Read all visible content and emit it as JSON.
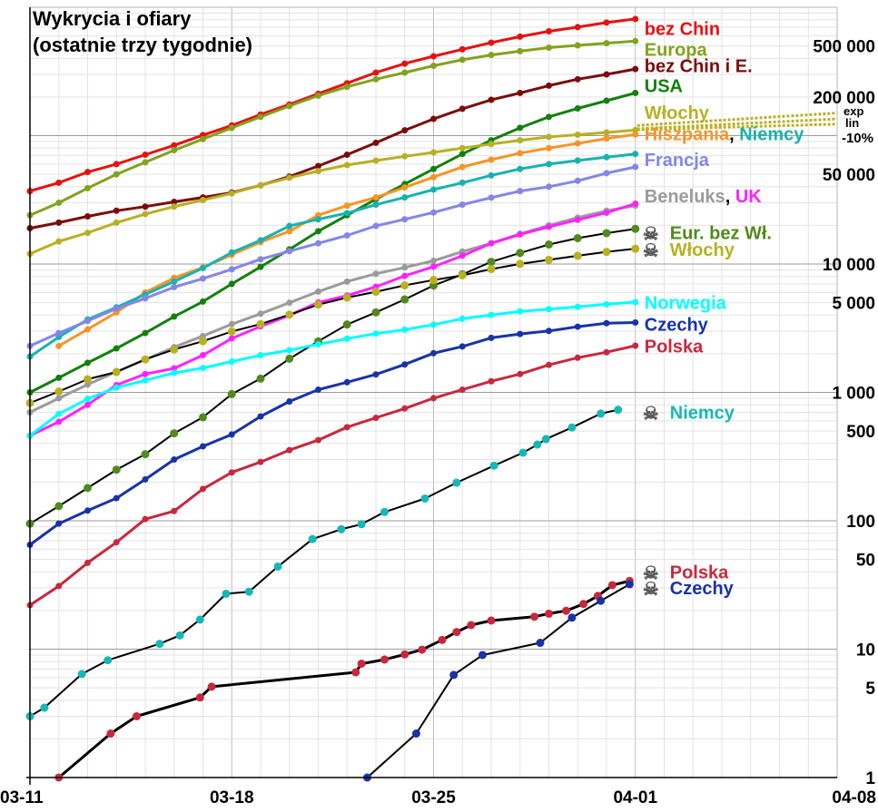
{
  "chart_data": {
    "type": "line",
    "title": "Wykrycia i ofiary",
    "subtitle": "(ostatnie trzy tygodnie)",
    "xlabel": "",
    "ylabel": "",
    "y_scale": "log",
    "ylim": [
      1,
      1000000
    ],
    "xlim": [
      0,
      28
    ],
    "x_ticks": [
      {
        "x": 0,
        "label": "03-11"
      },
      {
        "x": 7,
        "label": "03-18"
      },
      {
        "x": 14,
        "label": "03-25"
      },
      {
        "x": 21,
        "label": "04-01"
      },
      {
        "x": 28,
        "label": "04-08"
      }
    ],
    "y_ticks": [
      {
        "value": 1,
        "label": "1"
      },
      {
        "value": 5,
        "label": "5"
      },
      {
        "value": 10,
        "label": "10"
      },
      {
        "value": 50,
        "label": "50"
      },
      {
        "value": 100,
        "label": "100"
      },
      {
        "value": 500,
        "label": "500"
      },
      {
        "value": 1000,
        "label": "1 000"
      },
      {
        "value": 5000,
        "label": "5 000"
      },
      {
        "value": 10000,
        "label": "10 000"
      },
      {
        "value": 50000,
        "label": "50 000"
      },
      {
        "value": 200000,
        "label": "200 000"
      },
      {
        "value": 500000,
        "label": "500 000"
      }
    ],
    "annotations": {
      "exp": "exp",
      "lin": "lin",
      "pct": "-10%"
    },
    "series": [
      {
        "name": "bez Chin",
        "legend": [
          "bez Chin"
        ],
        "color": "#e8110f",
        "width": 3,
        "dot": 3.5,
        "skull": false,
        "label_value": 680000,
        "x": [
          0,
          1,
          2,
          3,
          4,
          5,
          6,
          7,
          8,
          9,
          10,
          11,
          12,
          13,
          14,
          15,
          16,
          17,
          18,
          19,
          20,
          21
        ],
        "values": [
          37000,
          43000,
          52000,
          60000,
          71000,
          84000,
          101000,
          120000,
          146000,
          175000,
          212000,
          256000,
          310000,
          364000,
          415000,
          470000,
          530000,
          590000,
          650000,
          700000,
          760000,
          810000
        ]
      },
      {
        "name": "Europa",
        "legend": [
          "Europa"
        ],
        "color": "#83a21e",
        "width": 3,
        "dot": 3.5,
        "skull": false,
        "label_value": 470000,
        "x": [
          0,
          1,
          2,
          3,
          4,
          5,
          6,
          7,
          8,
          9,
          10,
          11,
          12,
          13,
          14,
          15,
          16,
          17,
          18,
          19,
          20,
          21
        ],
        "values": [
          24000,
          30000,
          39000,
          50000,
          62000,
          77000,
          94000,
          115000,
          140000,
          170000,
          205000,
          240000,
          275000,
          310000,
          350000,
          390000,
          425000,
          455000,
          485000,
          505000,
          525000,
          545000
        ]
      },
      {
        "name": "bez Chin i E.",
        "legend": [
          "bez Chin i E."
        ],
        "color": "#7b0c0c",
        "width": 3,
        "dot": 3.5,
        "skull": false,
        "label_value": 350000,
        "x": [
          0,
          1,
          2,
          3,
          4,
          5,
          6,
          7,
          8,
          9,
          10,
          11,
          12,
          13,
          14,
          15,
          16,
          17,
          18,
          19,
          20,
          21
        ],
        "values": [
          19000,
          21000,
          23500,
          26000,
          28000,
          30500,
          33000,
          36000,
          41000,
          48000,
          58000,
          71000,
          88000,
          110000,
          135000,
          162000,
          190000,
          215000,
          245000,
          275000,
          300000,
          330000
        ]
      },
      {
        "name": "USA",
        "legend": [
          "USA"
        ],
        "color": "#13800e",
        "width": 3,
        "dot": 3.5,
        "skull": false,
        "label_value": 245000,
        "x": [
          0,
          1,
          2,
          3,
          4,
          5,
          6,
          7,
          8,
          9,
          10,
          11,
          12,
          13,
          14,
          15,
          16,
          17,
          18,
          19,
          20,
          21
        ],
        "values": [
          1000,
          1300,
          1700,
          2200,
          2900,
          3900,
          5100,
          7000,
          9500,
          13000,
          18000,
          24000,
          32000,
          42000,
          55000,
          72000,
          92000,
          115000,
          140000,
          163000,
          187000,
          215000
        ]
      },
      {
        "name": "Włochy",
        "legend": [
          "Włochy"
        ],
        "color": "#b8b023",
        "width": 3,
        "dot": 3.5,
        "skull": false,
        "label_value": 152000,
        "x": [
          0,
          1,
          2,
          3,
          4,
          5,
          6,
          7,
          8,
          9,
          10,
          11,
          12,
          13,
          14,
          15,
          16,
          17,
          18,
          19,
          20,
          21
        ],
        "values": [
          12000,
          15000,
          17500,
          21000,
          24500,
          28000,
          31500,
          35500,
          41000,
          47000,
          53000,
          59000,
          63900,
          69000,
          74000,
          80000,
          86000,
          92000,
          97700,
          101700,
          105800,
          110500
        ]
      },
      {
        "name": "Hiszpania",
        "legend": [
          "Hiszpania",
          ", ",
          "Niemcy"
        ],
        "legend_colors": [
          "#f79426",
          "#000000",
          "#17b2b0"
        ],
        "color": "#f79426",
        "width": 3,
        "dot": 3.5,
        "skull": false,
        "label_value": 103000,
        "x": [
          1,
          2,
          3,
          4,
          5,
          6,
          7,
          8,
          9,
          10,
          11,
          12,
          13,
          14,
          15,
          16,
          17,
          18,
          19,
          20,
          21
        ],
        "values": [
          2300,
          3100,
          4200,
          6000,
          7800,
          9400,
          11800,
          14800,
          18000,
          24000,
          28500,
          33000,
          39500,
          47500,
          57000,
          65000,
          73000,
          80000,
          87000,
          95000,
          102000
        ]
      },
      {
        "name": "Niemcy",
        "legend": [],
        "color": "#17b2b0",
        "width": 3,
        "dot": 3.5,
        "skull": false,
        "x": [
          0,
          1,
          2,
          3,
          4,
          5,
          6,
          7,
          8,
          9,
          10,
          11,
          12,
          13,
          14,
          15,
          16,
          17,
          18,
          19,
          20,
          21
        ],
        "values": [
          1900,
          2700,
          3700,
          4600,
          5800,
          7300,
          9300,
          12300,
          15300,
          19800,
          22300,
          24900,
          29000,
          33000,
          38000,
          43000,
          49000,
          55000,
          60000,
          64000,
          68000,
          72000
        ]
      },
      {
        "name": "Francja",
        "legend": [
          "Francja"
        ],
        "color": "#8585e8",
        "width": 3,
        "dot": 3.5,
        "skull": false,
        "label_value": 65000,
        "x": [
          0,
          1,
          2,
          3,
          4,
          5,
          6,
          7,
          8,
          9,
          10,
          11,
          12,
          13,
          14,
          15,
          16,
          17,
          18,
          19,
          20,
          21
        ],
        "values": [
          2300,
          2900,
          3600,
          4500,
          5400,
          6600,
          7700,
          9100,
          10900,
          12600,
          14500,
          16700,
          19800,
          22300,
          25200,
          29000,
          32900,
          37000,
          40000,
          44500,
          51000,
          57000
        ]
      },
      {
        "name": "Beneluks",
        "legend": [
          "Beneluks",
          ", ",
          "UK"
        ],
        "legend_colors": [
          "#9b9b9b",
          "#000000",
          "#ff22ff"
        ],
        "color": "#9b9b9b",
        "width": 3,
        "dot": 3.5,
        "skull": false,
        "label_value": 34000,
        "x": [
          0,
          1,
          2,
          3,
          4,
          5,
          6,
          7,
          8,
          9,
          10,
          11,
          12,
          13,
          14,
          15,
          16,
          17,
          18,
          19,
          20,
          21
        ],
        "values": [
          700,
          900,
          1150,
          1450,
          1800,
          2250,
          2750,
          3400,
          4100,
          5000,
          6100,
          7300,
          8400,
          9400,
          10600,
          12500,
          14500,
          17200,
          20000,
          23000,
          26000,
          28500
        ]
      },
      {
        "name": "UK",
        "legend": [],
        "color": "#ff22ff",
        "width": 3,
        "dot": 3.5,
        "skull": false,
        "x": [
          0,
          1,
          2,
          3,
          4,
          5,
          6,
          7,
          8,
          9,
          10,
          11,
          12,
          13,
          14,
          15,
          16,
          17,
          18,
          19,
          20,
          21
        ],
        "values": [
          460,
          590,
          800,
          1140,
          1390,
          1540,
          1950,
          2630,
          3270,
          3980,
          5020,
          5680,
          6650,
          8080,
          9530,
          11600,
          14500,
          17000,
          19500,
          22100,
          25100,
          29500
        ]
      },
      {
        "name": "Eur. bez Wł.",
        "legend": [
          "Eur. bez Wł."
        ],
        "color": "#508a1c",
        "dot_color": "#508a1c",
        "line_color": "#000000",
        "width": 2,
        "dot": 4.5,
        "skull": true,
        "label_value": 17500,
        "x": [
          0,
          1,
          2,
          3,
          4,
          5,
          6,
          7,
          8,
          9,
          10,
          11,
          12,
          13,
          14,
          15,
          16,
          17,
          18,
          19,
          20,
          21
        ],
        "values": [
          95,
          130,
          180,
          250,
          330,
          480,
          640,
          970,
          1280,
          1830,
          2500,
          3380,
          4200,
          5300,
          6800,
          8300,
          10400,
          12200,
          14200,
          15900,
          17400,
          18800
        ]
      },
      {
        "name": "Włochy (zgony)",
        "legend": [
          "Włochy"
        ],
        "color": "#b8b023",
        "dot_color": "#b8b023",
        "line_color": "#000000",
        "width": 2,
        "dot": 4.5,
        "skull": true,
        "label_value": 13000,
        "x": [
          0,
          1,
          2,
          3,
          4,
          5,
          6,
          7,
          8,
          9,
          10,
          11,
          12,
          13,
          14,
          15,
          16,
          17,
          18,
          19,
          20,
          21
        ],
        "values": [
          827,
          1016,
          1266,
          1441,
          1809,
          2158,
          2503,
          2978,
          3405,
          4032,
          4825,
          5476,
          6077,
          6820,
          7503,
          8165,
          9134,
          10023,
          10779,
          11591,
          12428,
          13155
        ]
      },
      {
        "name": "Norwegia",
        "legend": [
          "Norwegia"
        ],
        "color": "#00ffff",
        "width": 3,
        "dot": 3.5,
        "skull": false,
        "label_value": 5000,
        "x": [
          0,
          1,
          2,
          3,
          4,
          5,
          6,
          7,
          8,
          9,
          10,
          11,
          12,
          13,
          14,
          15,
          16,
          17,
          18,
          19,
          20,
          21
        ],
        "values": [
          460,
          680,
          890,
          1090,
          1240,
          1420,
          1550,
          1740,
          1950,
          2130,
          2370,
          2620,
          2870,
          3080,
          3370,
          3750,
          4010,
          4280,
          4450,
          4640,
          4860,
          5050
        ]
      },
      {
        "name": "Czechy",
        "legend": [
          "Czechy"
        ],
        "color": "#1833a8",
        "width": 3,
        "dot": 3.5,
        "skull": false,
        "label_value": 3400,
        "x": [
          0,
          1,
          2,
          3,
          4,
          5,
          6,
          7,
          8,
          9,
          10,
          11,
          12,
          13,
          14,
          15,
          16,
          17,
          18,
          19,
          20,
          21
        ],
        "values": [
          65,
          95,
          120,
          150,
          210,
          300,
          380,
          470,
          650,
          850,
          1050,
          1200,
          1380,
          1650,
          2020,
          2280,
          2660,
          2850,
          3010,
          3250,
          3460,
          3500
        ]
      },
      {
        "name": "Polska",
        "legend": [
          "Polska"
        ],
        "color": "#c8283e",
        "width": 3,
        "dot": 3.5,
        "skull": false,
        "label_value": 2300,
        "x": [
          0,
          1,
          2,
          3,
          4,
          5,
          6,
          7,
          8,
          9,
          10,
          11,
          12,
          13,
          14,
          15,
          16,
          17,
          18,
          19,
          20,
          21
        ],
        "values": [
          22,
          31,
          47,
          68,
          103,
          119,
          177,
          238,
          287,
          355,
          425,
          536,
          634,
          749,
          901,
          1051,
          1221,
          1389,
          1638,
          1862,
          2055,
          2311
        ]
      },
      {
        "name": "Niemcy (zgony)",
        "legend": [
          "Niemcy"
        ],
        "color": "#16b8b6",
        "dot_color": "#16b8b6",
        "line_color": "#000000",
        "width": 2,
        "dot": 4.5,
        "skull": true,
        "label_value": 700,
        "x": [
          0,
          0.5,
          1.8,
          2.7,
          4.5,
          5.2,
          5.9,
          6.8,
          7.6,
          8.6,
          9.8,
          10.8,
          11.5,
          12.3,
          13.7,
          14.8,
          16.1,
          17.1,
          17.6,
          17.9,
          18.8,
          19.8,
          20.4
        ],
        "values": [
          3,
          3.5,
          6.4,
          8.2,
          11,
          12.8,
          17,
          27,
          28,
          44,
          72,
          86,
          94,
          117,
          149,
          198,
          269,
          339,
          392,
          433,
          533,
          683,
          732
        ]
      },
      {
        "name": "Polska (zgony)",
        "legend": [
          "Polska"
        ],
        "color": "#c8283e",
        "dot_color": "#c8283e",
        "line_color": "#000000",
        "width": 3,
        "dot": 4.5,
        "skull": true,
        "label_value": 40,
        "x": [
          1,
          2.8,
          3.7,
          5.9,
          6.3,
          11.3,
          11.5,
          12.3,
          13,
          13.6,
          14.3,
          14.8,
          15.3,
          16,
          17.5,
          18,
          18.6,
          19.2,
          19.7,
          20.2,
          20.8
        ],
        "values": [
          1,
          2.2,
          3,
          4.2,
          5.1,
          6.6,
          7.7,
          8.3,
          9.1,
          9.9,
          11.8,
          13.6,
          15.4,
          16.7,
          17.9,
          18.9,
          19.9,
          22.5,
          26,
          31.5,
          34
        ]
      },
      {
        "name": "Czechy (zgony)",
        "legend": [
          "Czechy"
        ],
        "color": "#1833a8",
        "dot_color": "#1833a8",
        "line_color": "#000000",
        "width": 2,
        "dot": 4.5,
        "skull": true,
        "label_value": 30,
        "x": [
          11.7,
          13.4,
          14.7,
          15.7,
          17.7,
          18.8,
          19.8,
          20.8
        ],
        "values": [
          1,
          2.2,
          6.3,
          9,
          11.2,
          17.6,
          23.8,
          32
        ]
      }
    ]
  }
}
